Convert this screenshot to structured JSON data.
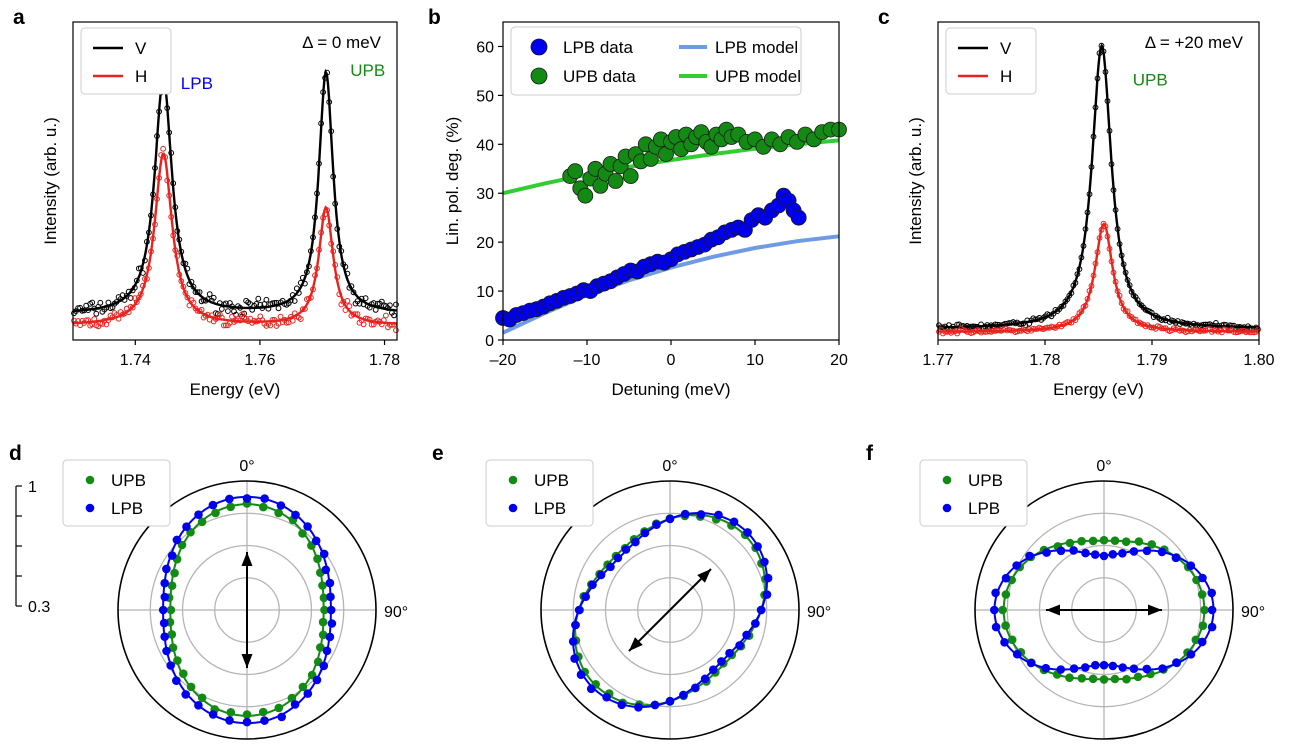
{
  "chart_data": [
    {
      "id": "a",
      "panel_label": "a",
      "type": "line",
      "xlabel": "Energy (eV)",
      "ylabel": "Intensity (arb. u.)",
      "xlim": [
        1.73,
        1.782
      ],
      "ylim": [
        0,
        1.0
      ],
      "xticks": [
        1.74,
        1.76,
        1.78
      ],
      "xtick_labels": [
        "1.74",
        "1.76",
        "1.78"
      ],
      "annotation": "Δ = 0 meV",
      "peak_labels": [
        {
          "text": "LPB",
          "x": 1.7473,
          "y": 0.79,
          "color": "#0000ee"
        },
        {
          "text": "UPB",
          "x": 1.7745,
          "y": 0.83,
          "color": "#138a13"
        }
      ],
      "legend": {
        "position": "top-left",
        "entries": [
          {
            "label": "V",
            "color": "#000000"
          },
          {
            "label": "H",
            "color": "#e8231e"
          }
        ]
      },
      "series": [
        {
          "name": "V",
          "color": "#000000",
          "baseline": 0.08,
          "noise": 0.035,
          "peaks": [
            [
              1.7445,
              0.74,
              0.0017
            ],
            [
              1.7706,
              0.76,
              0.0014
            ]
          ]
        },
        {
          "name": "H",
          "color": "#e8231e",
          "baseline": 0.045,
          "noise": 0.03,
          "peaks": [
            [
              1.7445,
              0.54,
              0.0017
            ],
            [
              1.7706,
              0.37,
              0.0014
            ]
          ]
        }
      ]
    },
    {
      "id": "b",
      "panel_label": "b",
      "type": "scatter",
      "xlabel": "Detuning (meV)",
      "ylabel": "Lin. pol. deg. (%)",
      "xlim": [
        -20,
        20
      ],
      "ylim": [
        0,
        65
      ],
      "xticks": [
        -20,
        -10,
        0,
        10,
        20
      ],
      "xtick_labels": [
        "–20",
        "–10",
        "0",
        "10",
        "20"
      ],
      "yticks": [
        0,
        10,
        20,
        30,
        40,
        50,
        60
      ],
      "ytick_labels": [
        "0",
        "10",
        "20",
        "30",
        "40",
        "50",
        "60"
      ],
      "legend": {
        "position": "top",
        "entries": [
          {
            "label": "LPB data",
            "color": "#0000ee",
            "kind": "marker"
          },
          {
            "label": "LPB model",
            "color": "#6f9be6",
            "kind": "line"
          },
          {
            "label": "UPB data",
            "color": "#138a13",
            "kind": "marker"
          },
          {
            "label": "UPB model",
            "color": "#33cc33",
            "kind": "line"
          }
        ]
      },
      "series": [
        {
          "name": "LPB data",
          "color": "#0000ee",
          "x": [
            -20,
            -19.2,
            -18.4,
            -17.6,
            -16.8,
            -16,
            -15.2,
            -14.4,
            -13.6,
            -12.8,
            -12,
            -11.2,
            -10.4,
            -9.6,
            -8.8,
            -8,
            -7.2,
            -6.4,
            -5.6,
            -4.8,
            -4,
            -3.2,
            -2.4,
            -1.6,
            -0.8,
            0,
            0.8,
            1.6,
            2.4,
            3.2,
            4,
            4.8,
            5.6,
            6.4,
            7.2,
            8,
            8.8,
            9.6,
            10.4,
            11.2,
            12,
            12.8,
            13.4,
            14,
            14.6,
            15.2
          ],
          "y": [
            4.5,
            4.2,
            5.1,
            5.5,
            6.0,
            6.3,
            6.8,
            7.5,
            8.0,
            8.6,
            9.0,
            9.5,
            10.2,
            10.0,
            11.0,
            11.5,
            12.0,
            12.8,
            13.5,
            14.2,
            14.0,
            15.0,
            15.5,
            16.0,
            15.8,
            16.5,
            17.5,
            18.0,
            18.5,
            19.0,
            19.5,
            20.5,
            21.0,
            22.0,
            22.5,
            23.0,
            22.5,
            24.5,
            25.5,
            25.0,
            26.5,
            27.5,
            29.5,
            28.5,
            26.5,
            25.0
          ]
        },
        {
          "name": "LPB model",
          "color": "#6f9be6",
          "x": [
            -20,
            -15,
            -10,
            -5,
            0,
            5,
            10,
            15,
            20
          ],
          "y": [
            1.5,
            5.5,
            9.2,
            12.2,
            14.8,
            17.0,
            18.8,
            20.2,
            21.2
          ]
        },
        {
          "name": "UPB data",
          "color": "#138a13",
          "x": [
            -12,
            -11.4,
            -10.8,
            -10.2,
            -9.6,
            -9,
            -8.4,
            -7.8,
            -7.2,
            -6.6,
            -6,
            -5.4,
            -4.8,
            -4.2,
            -3.6,
            -3,
            -2.4,
            -1.8,
            -1.2,
            -0.6,
            0,
            0.6,
            1.2,
            1.8,
            2.4,
            3,
            3.6,
            4.2,
            4.8,
            5.4,
            6,
            6.6,
            7.2,
            8,
            9,
            10,
            11,
            12,
            13,
            14,
            15,
            16,
            17,
            18,
            19,
            20
          ],
          "y": [
            33.5,
            34.5,
            31.0,
            29.5,
            33.0,
            35.0,
            31.5,
            34.0,
            36.0,
            32.5,
            35.5,
            37.5,
            33.5,
            38.0,
            36.5,
            40.0,
            37.0,
            39.5,
            41.0,
            38.0,
            40.5,
            41.5,
            39.0,
            42.0,
            40.0,
            41.5,
            42.5,
            40.5,
            39.5,
            42.0,
            41.0,
            43.0,
            41.5,
            42.0,
            40.5,
            41.0,
            39.5,
            41.0,
            40.0,
            41.5,
            40.5,
            42.0,
            41.0,
            42.5,
            43.0,
            43.0
          ]
        },
        {
          "name": "UPB model",
          "color": "#33cc33",
          "x": [
            -20,
            -15,
            -10,
            -5,
            0,
            5,
            10,
            15,
            20
          ],
          "y": [
            30.0,
            32.0,
            33.8,
            35.4,
            36.8,
            38.0,
            39.1,
            40.0,
            40.8
          ]
        }
      ]
    },
    {
      "id": "c",
      "panel_label": "c",
      "type": "line",
      "xlabel": "Energy (eV)",
      "ylabel": "Intensity (arb. u.)",
      "xlim": [
        1.77,
        1.8
      ],
      "ylim": [
        0,
        1.0
      ],
      "xticks": [
        1.77,
        1.78,
        1.79,
        1.8
      ],
      "xtick_labels": [
        "1.77",
        "1.78",
        "1.79",
        "1.80"
      ],
      "annotation": "Δ = +20 meV",
      "peak_labels": [
        {
          "text": "UPB",
          "x": 1.7882,
          "y": 0.8,
          "color": "#138a13"
        }
      ],
      "legend": {
        "position": "top-left",
        "entries": [
          {
            "label": "V",
            "color": "#000000"
          },
          {
            "label": "H",
            "color": "#e8231e"
          }
        ]
      },
      "series": [
        {
          "name": "V",
          "color": "#000000",
          "baseline": 0.035,
          "noise": 0.012,
          "peaks": [
            [
              1.7853,
              0.89,
              0.0011
            ]
          ]
        },
        {
          "name": "H",
          "color": "#e8231e",
          "baseline": 0.025,
          "noise": 0.01,
          "peaks": [
            [
              1.7855,
              0.34,
              0.001
            ]
          ]
        }
      ]
    },
    {
      "id": "d",
      "panel_label": "d",
      "type": "polar",
      "theta_labels": [
        "0°",
        "90°"
      ],
      "r_min": 0.3,
      "r_max": 1.0,
      "radial_scale": {
        "ticks": [
          1.0,
          0.825,
          0.65,
          0.475,
          0.3
        ],
        "labels": [
          "1",
          "",
          "",
          "",
          "0.3"
        ]
      },
      "arrow_angle_deg": 0,
      "legend": {
        "position": "top-left",
        "entries": [
          {
            "label": "UPB",
            "color": "#138a13"
          },
          {
            "label": "LPB",
            "color": "#0000ee"
          }
        ]
      },
      "series": [
        {
          "name": "UPB",
          "color": "#138a13",
          "axis_deg": 0,
          "a": 0.58,
          "b": 0.42,
          "n_points": 40
        },
        {
          "name": "LPB",
          "color": "#0000ee",
          "axis_deg": 0,
          "a": 0.62,
          "b": 0.46,
          "n_points": 40
        }
      ]
    },
    {
      "id": "e",
      "panel_label": "e",
      "type": "polar",
      "theta_labels": [
        "0°",
        "90°"
      ],
      "r_min": 0.3,
      "r_max": 1.0,
      "arrow_angle_deg": 45,
      "legend": {
        "position": "top-left",
        "entries": [
          {
            "label": "UPB",
            "color": "#138a13"
          },
          {
            "label": "LPB",
            "color": "#0000ee"
          }
        ]
      },
      "series": [
        {
          "name": "UPB",
          "color": "#138a13",
          "axis_deg": 45,
          "a": 0.58,
          "b": 0.42,
          "n_points": 40
        },
        {
          "name": "LPB",
          "color": "#0000ee",
          "axis_deg": 45,
          "a": 0.6,
          "b": 0.4,
          "n_points": 40
        }
      ]
    },
    {
      "id": "f",
      "panel_label": "f",
      "type": "polar",
      "theta_labels": [
        "0°",
        "90°"
      ],
      "r_min": 0.3,
      "r_max": 1.0,
      "arrow_angle_deg": 90,
      "legend": {
        "position": "top-left",
        "entries": [
          {
            "label": "UPB",
            "color": "#138a13"
          },
          {
            "label": "LPB",
            "color": "#0000ee"
          }
        ]
      },
      "series": [
        {
          "name": "UPB",
          "color": "#138a13",
          "axis_deg": 90,
          "a": 0.55,
          "b": 0.38,
          "n_points": 40
        },
        {
          "name": "LPB",
          "color": "#0000ee",
          "axis_deg": 90,
          "a": 0.6,
          "b": 0.3,
          "n_points": 40
        }
      ]
    }
  ]
}
